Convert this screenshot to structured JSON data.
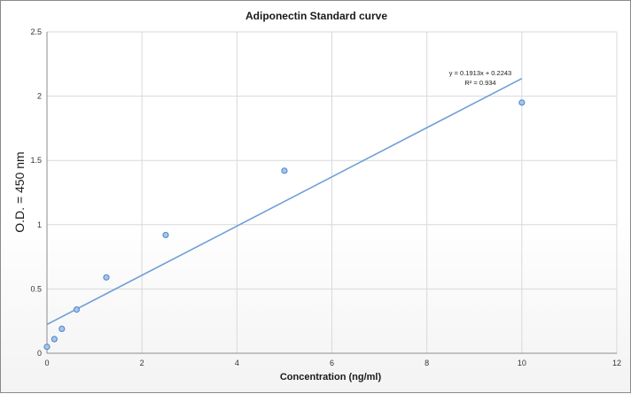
{
  "chart_data": {
    "type": "scatter",
    "title": "Adiponectin  Standard curve",
    "xlabel": "Concentration (ng/ml)",
    "ylabel": "O.D. = 450 nm",
    "xlim": [
      0,
      12
    ],
    "ylim": [
      0,
      2.5
    ],
    "x_ticks": [
      0,
      2,
      4,
      6,
      8,
      10,
      12
    ],
    "y_ticks": [
      0,
      0.5,
      1,
      1.5,
      2,
      2.5
    ],
    "grid": true,
    "legend": "none",
    "series": [
      {
        "points": [
          {
            "x": 0,
            "y": 0.05
          },
          {
            "x": 0.156,
            "y": 0.11
          },
          {
            "x": 0.313,
            "y": 0.19
          },
          {
            "x": 0.625,
            "y": 0.34
          },
          {
            "x": 1.25,
            "y": 0.59
          },
          {
            "x": 2.5,
            "y": 0.92
          },
          {
            "x": 5,
            "y": 1.42
          },
          {
            "x": 10,
            "y": 1.95
          }
        ],
        "color": "#5b8fd0"
      }
    ],
    "trendline": {
      "type": "linear",
      "slope": 0.1913,
      "intercept": 0.2243,
      "x_range": [
        0,
        10
      ],
      "color": "#6f9fd8",
      "equation_text": "y = 0.1913x + 0.2243",
      "r2_text": "R² = 0.934"
    }
  }
}
